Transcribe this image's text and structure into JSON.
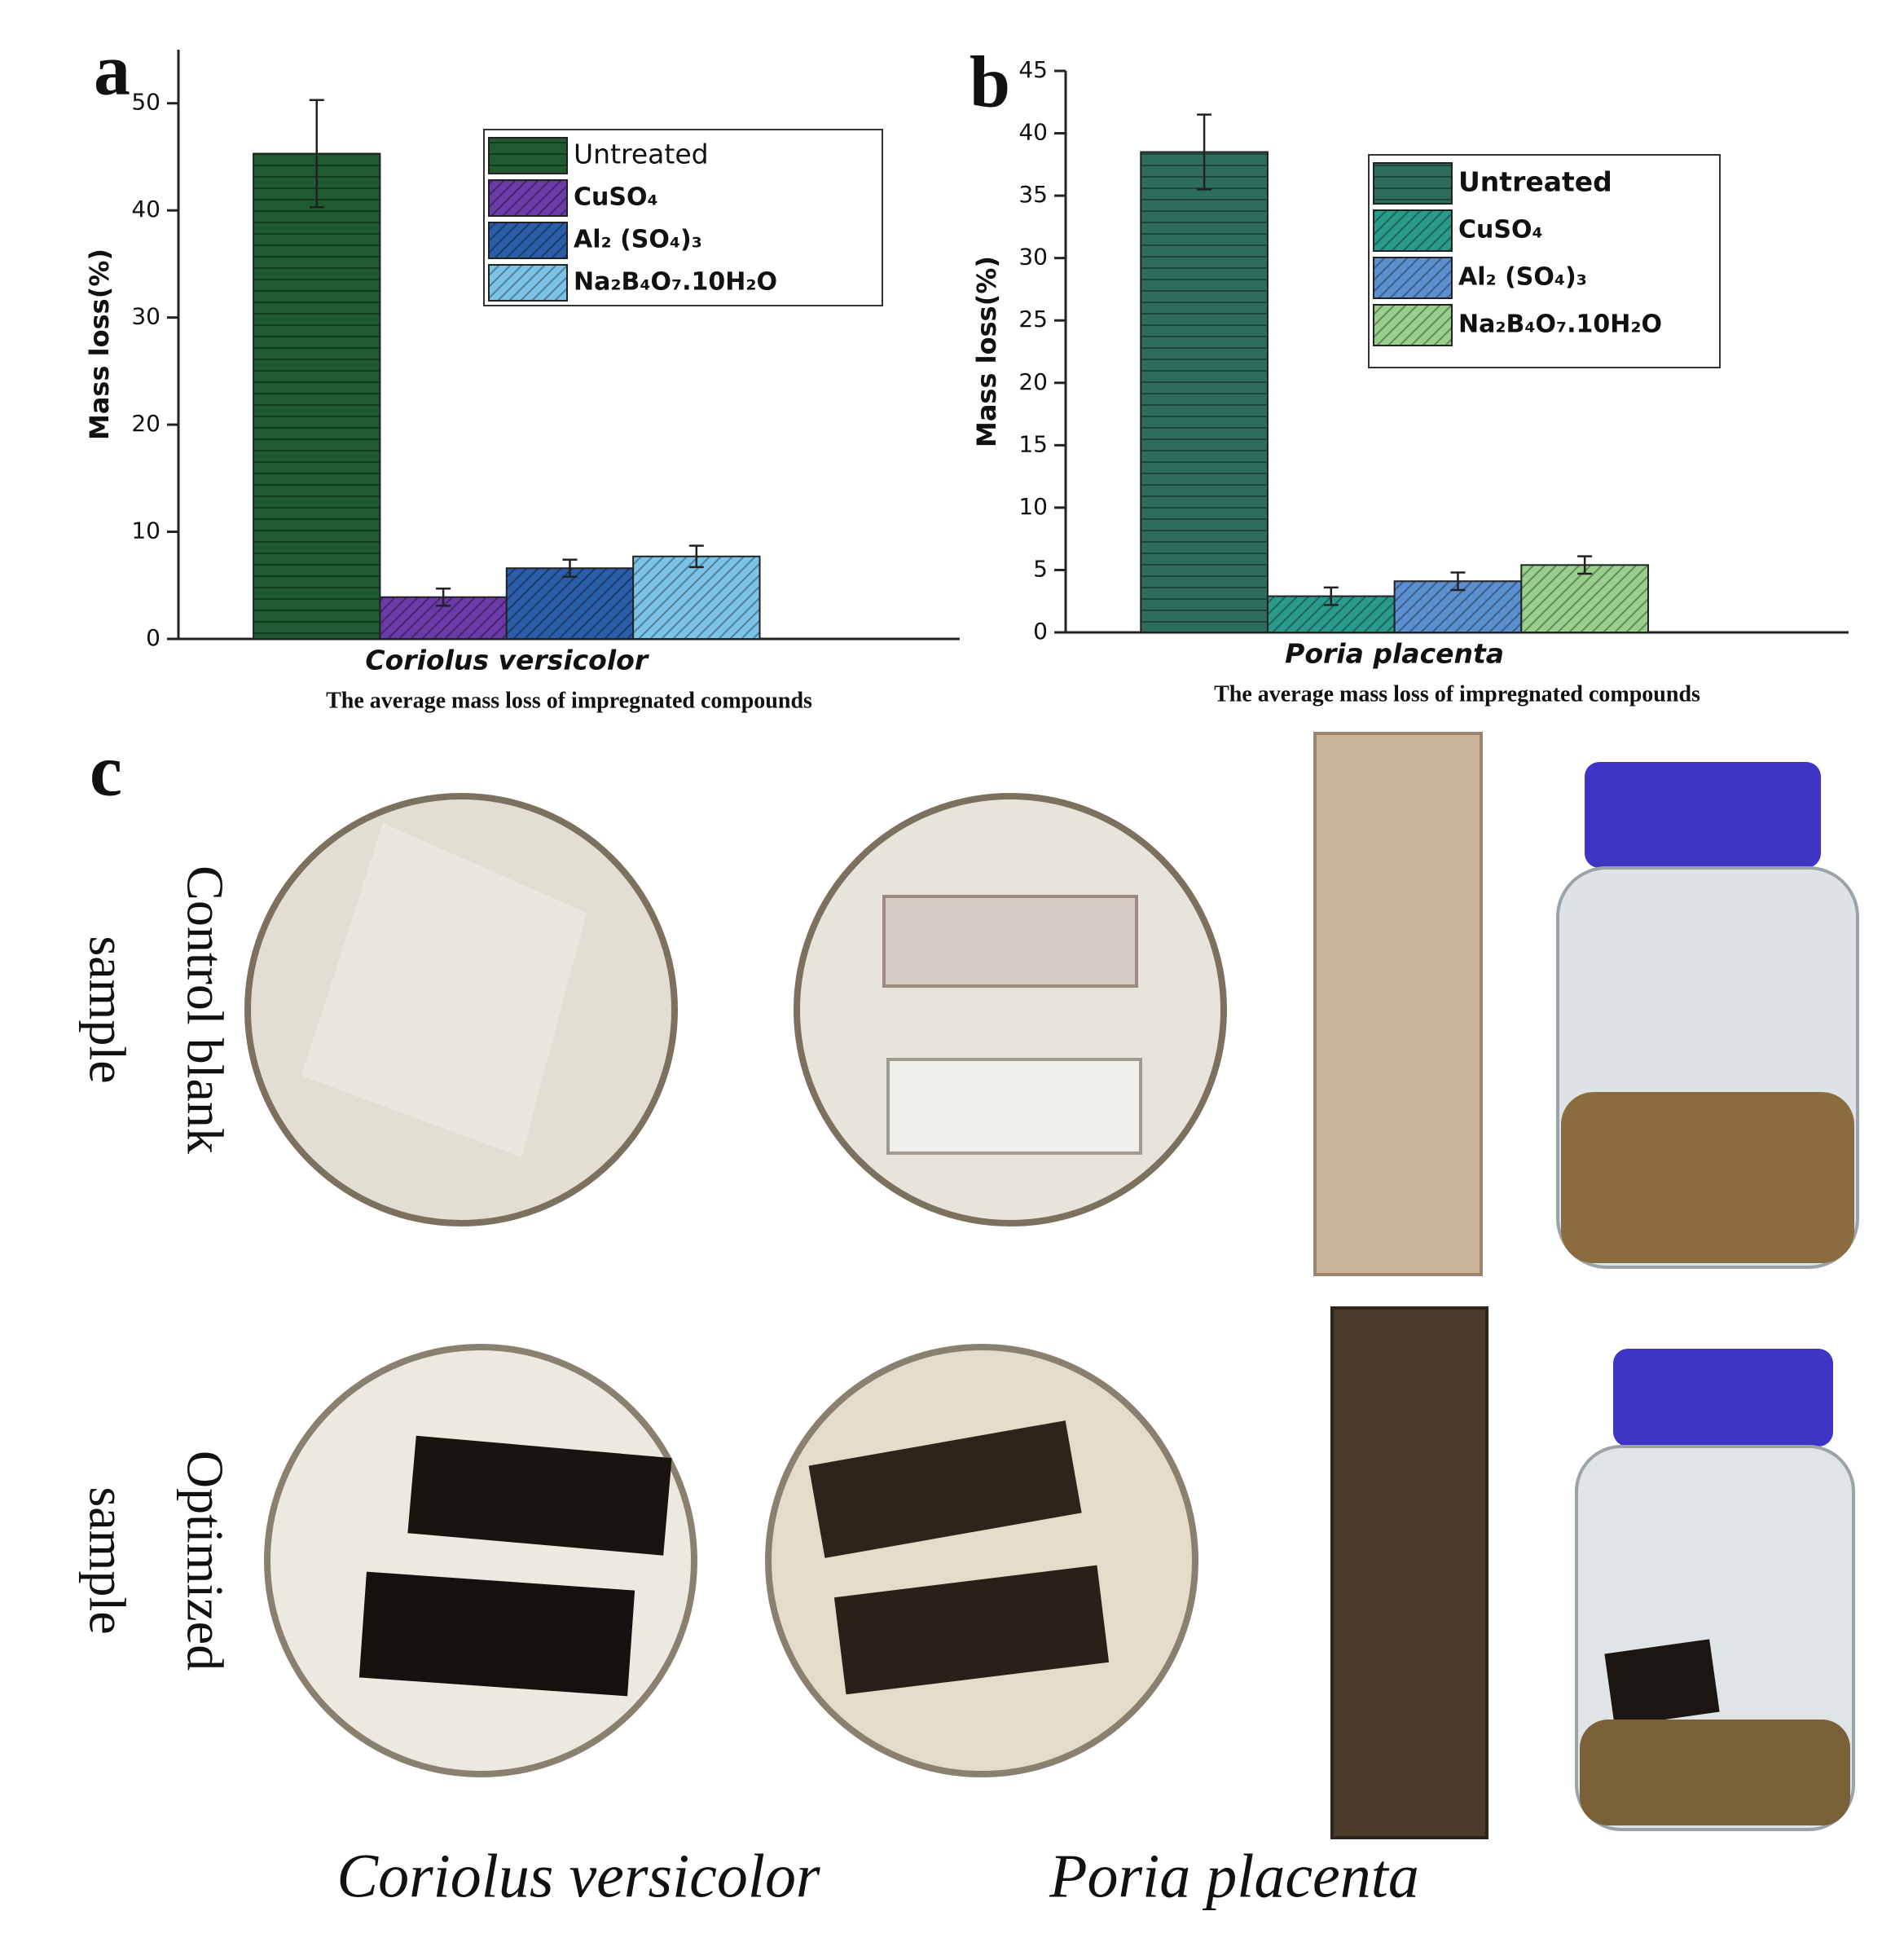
{
  "chart_data": [
    {
      "type": "bar",
      "panel_label": "a",
      "ylabel": "Mass loss(%)",
      "xlabel": "Coriolus versicolor",
      "caption": "The average mass loss of impregnated compounds",
      "ylim": [
        0,
        55
      ],
      "yticks": [
        0,
        10,
        20,
        30,
        40,
        50
      ],
      "legend": "upper right",
      "series": [
        {
          "name": "Untreated",
          "color": "#1f5a31",
          "values": [
            45.3
          ],
          "errors": [
            5.0
          ]
        },
        {
          "name": "CuSO₄",
          "color": "#6a3aa8",
          "values": [
            3.9
          ],
          "errors": [
            0.8
          ]
        },
        {
          "name": "Al₂ (SO₄)₃",
          "color": "#2a5ca8",
          "values": [
            6.6
          ],
          "errors": [
            0.8
          ]
        },
        {
          "name": "Na₂B₄O₇.10H₂O",
          "color": "#7cc3e8",
          "values": [
            7.7
          ],
          "errors": [
            1.0
          ]
        }
      ]
    },
    {
      "type": "bar",
      "panel_label": "b",
      "ylabel": "Mass loss(%)",
      "xlabel": "Poria placenta",
      "caption": "The average mass loss of impregnated compounds",
      "ylim": [
        0,
        45
      ],
      "yticks": [
        0,
        5,
        10,
        15,
        20,
        25,
        30,
        35,
        40,
        45
      ],
      "legend": "upper right",
      "series": [
        {
          "name": "Untreated",
          "color": "#2e6c5d",
          "values": [
            38.5
          ],
          "errors": [
            3.0
          ]
        },
        {
          "name": "CuSO₄",
          "color": "#2a9a8a",
          "values": [
            2.9
          ],
          "errors": [
            0.7
          ]
        },
        {
          "name": "Al₂ (SO₄)₃",
          "color": "#5b8fd0",
          "values": [
            4.1
          ],
          "errors": [
            0.7
          ]
        },
        {
          "name": "Na₂B₄O₇.10H₂O",
          "color": "#98cf8a",
          "values": [
            5.4
          ],
          "errors": [
            0.7
          ]
        }
      ]
    }
  ],
  "photo_panel": {
    "label": "c",
    "rows": [
      [
        "Control blank",
        "sample"
      ],
      [
        "Optimized",
        "sample"
      ]
    ],
    "columns": [
      "Coriolus versicolor",
      "Poria placenta"
    ]
  }
}
